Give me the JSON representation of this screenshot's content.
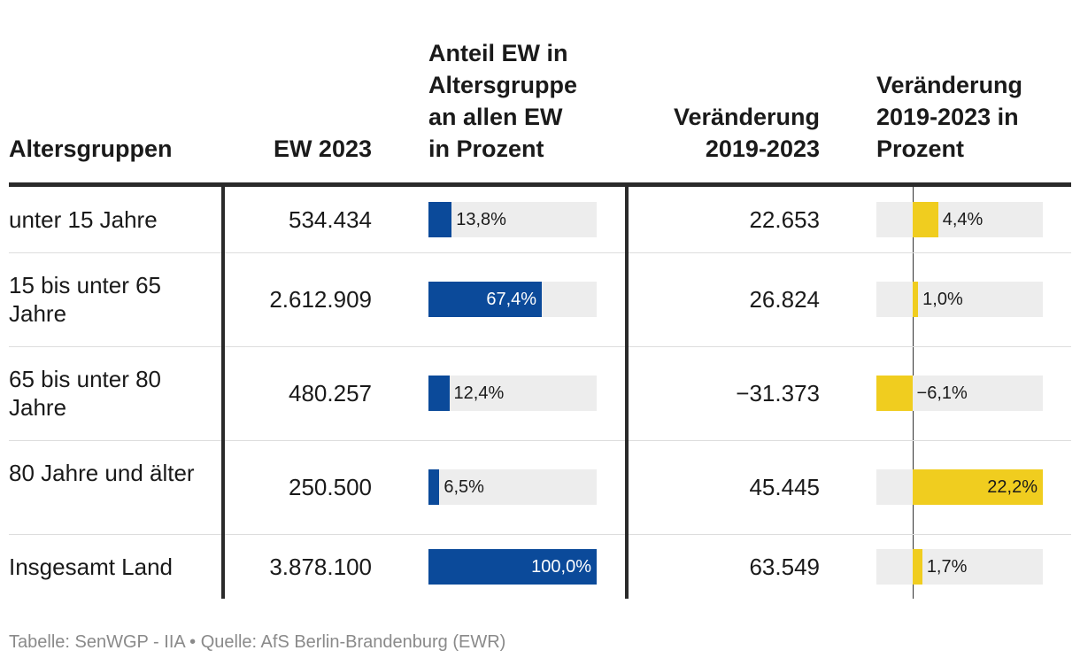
{
  "colors": {
    "share_bar": "#0b4a9a",
    "change_bar": "#f0cd1f",
    "track": "#ededed"
  },
  "chart_data": {
    "type": "table",
    "columns": [
      "Altersgruppen",
      "EW 2023",
      "Anteil EW in\nAltersgruppe\nan allen EW\nin Prozent",
      "Veränderung\n2019-2023",
      "Veränderung\n2019-2023 in\nProzent"
    ],
    "rows": [
      {
        "group": "unter 15 Jahre",
        "ew": "534.434",
        "share": 13.8,
        "share_label": "13,8%",
        "change": "22.653",
        "change_pct": 4.4,
        "change_pct_label": "4,4%"
      },
      {
        "group": "15 bis unter 65 Jahre",
        "ew": "2.612.909",
        "share": 67.4,
        "share_label": "67,4%",
        "change": "26.824",
        "change_pct": 1.0,
        "change_pct_label": "1,0%"
      },
      {
        "group": "65 bis unter 80 Jahre",
        "ew": "480.257",
        "share": 12.4,
        "share_label": "12,4%",
        "change": "−31.373",
        "change_pct": -6.1,
        "change_pct_label": "−6,1%"
      },
      {
        "group": "80 Jahre und älter",
        "ew": "250.500",
        "share": 6.5,
        "share_label": "6,5%",
        "change": "45.445",
        "change_pct": 22.2,
        "change_pct_label": "22,2%"
      },
      {
        "group": "Insgesamt Land",
        "ew": "3.878.100",
        "share": 100.0,
        "share_label": "100,0%",
        "change": "63.549",
        "change_pct": 1.7,
        "change_pct_label": "1,7%"
      }
    ],
    "share_range": [
      0,
      100
    ],
    "change_pct_range": [
      -6.1,
      22.2
    ]
  },
  "footer": "Tabelle: SenWGP - IIA • Quelle: AfS Berlin-Brandenburg (EWR)"
}
